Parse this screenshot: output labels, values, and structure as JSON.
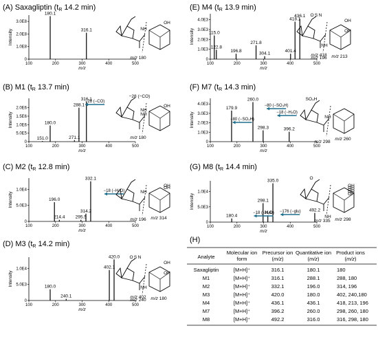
{
  "chart_data": [
    {
      "type": "bar",
      "panel": "A",
      "title": "(A) Saxagliptin (t_R 14.2 min)",
      "xlabel": "m/z",
      "ylabel": "Intensity",
      "xlim": [
        100,
        500
      ],
      "ylim": [
        0,
        3.5
      ],
      "x_ticks": [
        "100",
        "200",
        "300",
        "400",
        "500"
      ],
      "y_ticks": [
        "0",
        "1.0E8",
        "2.0E8",
        "3.0E8"
      ],
      "peaks": [
        {
          "mz": 180.1,
          "intensity": 3.42,
          "label": "180.1"
        },
        {
          "mz": 316.1,
          "intensity": 2.1,
          "label": "316.1"
        }
      ],
      "structure_annotations": [
        "NH",
        "OH",
        "m/z 180"
      ]
    },
    {
      "type": "bar",
      "panel": "B",
      "title": "(B) M1 (t_R 13.7 min)",
      "xlabel": "m/z",
      "ylabel": "Intensity",
      "xlim": [
        100,
        500
      ],
      "ylim": [
        0,
        2.55
      ],
      "x_ticks": [
        "100",
        "200",
        "300",
        "400",
        "500"
      ],
      "y_ticks": [
        "0",
        "5.0E5",
        "1.0E6",
        "1.5E6",
        "2.0E6"
      ],
      "peaks": [
        {
          "mz": 151.0,
          "intensity": 0.04,
          "label": "151.0"
        },
        {
          "mz": 180.0,
          "intensity": 0.95,
          "label": "180.0"
        },
        {
          "mz": 271.1,
          "intensity": 0.09,
          "label": "271.1"
        },
        {
          "mz": 288.1,
          "intensity": 2.0,
          "label": "288.1"
        },
        {
          "mz": 316.1,
          "intensity": 2.35,
          "label": "316.1"
        }
      ],
      "annotations": [
        "−28 (−CO)"
      ],
      "structure_annotations": [
        "NH",
        "NH",
        "OH",
        "−28 (−CO)",
        "m/z 180"
      ]
    },
    {
      "type": "bar",
      "panel": "C",
      "title": "(C) M2 (t_R 12.8 min)",
      "xlabel": "m/z",
      "ylabel": "Intensity",
      "xlim": [
        100,
        500
      ],
      "ylim": [
        0,
        1.35
      ],
      "x_ticks": [
        "100",
        "200",
        "300",
        "400",
        "500"
      ],
      "y_ticks": [
        "0",
        "5.0E3",
        "1.0E4"
      ],
      "peaks": [
        {
          "mz": 196.0,
          "intensity": 0.6,
          "label": "196.0"
        },
        {
          "mz": 214.4,
          "intensity": 0.05,
          "label": "214.4"
        },
        {
          "mz": 295.5,
          "intensity": 0.05,
          "label": "295.5"
        },
        {
          "mz": 314.2,
          "intensity": 0.24,
          "label": "314.2"
        },
        {
          "mz": 332.1,
          "intensity": 1.25,
          "label": "332.1"
        }
      ],
      "annotations": [
        "−18 (−H₂O)"
      ],
      "structure_annotations": [
        "NH",
        "OH",
        "OH",
        "m/z 314",
        "m/z 196"
      ]
    },
    {
      "type": "bar",
      "panel": "D",
      "title": "(D) M3 (t_R 14.2 min)",
      "xlabel": "m/z",
      "ylabel": "Intensity",
      "xlim": [
        100,
        500
      ],
      "ylim": [
        0,
        1.35
      ],
      "x_ticks": [
        "100",
        "200",
        "300",
        "400",
        "500"
      ],
      "y_ticks": [
        "0",
        "5.0E3",
        "1.0E4"
      ],
      "peaks": [
        {
          "mz": 180.0,
          "intensity": 0.35,
          "label": "180.0"
        },
        {
          "mz": 240.1,
          "intensity": 0.05,
          "label": "240.1"
        },
        {
          "mz": 402.1,
          "intensity": 0.95,
          "label": "402.1"
        },
        {
          "mz": 420.0,
          "intensity": 1.28,
          "label": "420.0"
        }
      ],
      "structure_annotations": [
        "OH",
        "O",
        "S",
        "N",
        "NH",
        "OH",
        "m/z 402",
        "m/z 180",
        "m/z 240"
      ]
    },
    {
      "type": "bar",
      "panel": "E",
      "title": "(E) M4 (t_R 13.9 min)",
      "xlabel": "m/z",
      "ylabel": "Intensity",
      "xlim": [
        100,
        500
      ],
      "ylim": [
        0,
        4.6
      ],
      "x_ticks": [
        "100",
        "200",
        "300",
        "400",
        "500"
      ],
      "y_ticks": [
        "0",
        "1.0E3",
        "2.0E3",
        "3.0E3",
        "4.0E3"
      ],
      "peaks": [
        {
          "mz": 115.0,
          "intensity": 2.4,
          "label": "115.0"
        },
        {
          "mz": 122.8,
          "intensity": 0.95,
          "label": "122.8"
        },
        {
          "mz": 196.8,
          "intensity": 0.55,
          "label": "196.8"
        },
        {
          "mz": 271.8,
          "intensity": 1.4,
          "label": "271.8"
        },
        {
          "mz": 304.1,
          "intensity": 0.3,
          "label": "304.1"
        },
        {
          "mz": 401.4,
          "intensity": 0.55,
          "label": "401.4"
        },
        {
          "mz": 418.1,
          "intensity": 3.8,
          "label": "418.1"
        },
        {
          "mz": 436.1,
          "intensity": 4.1,
          "label": "436.1"
        }
      ],
      "structure_annotations": [
        "OH",
        "O",
        "S",
        "N",
        "NH",
        "OH",
        "m/z 418",
        "m/z 213",
        "m/z 196"
      ]
    },
    {
      "type": "bar",
      "panel": "F",
      "title": "(F) M7 (t_R 14.3 min)",
      "xlabel": "m/z",
      "ylabel": "Intensity",
      "xlim": [
        100,
        500
      ],
      "ylim": [
        0,
        4.6
      ],
      "x_ticks": [
        "100",
        "200",
        "300",
        "400",
        "500"
      ],
      "y_ticks": [
        "0",
        "1.0E3",
        "2.0E3",
        "3.0E3",
        "4.0E3"
      ],
      "peaks": [
        {
          "mz": 179.9,
          "intensity": 3.3,
          "label": "179.9"
        },
        {
          "mz": 260.0,
          "intensity": 4.2,
          "label": "260.0"
        },
        {
          "mz": 298.3,
          "intensity": 1.2,
          "label": "298.3"
        },
        {
          "mz": 396.2,
          "intensity": 1.05,
          "label": "396.2"
        }
      ],
      "annotations": [
        "−80 (−SO₃H)",
        "−18 (−H₂O)",
        "−80 (−SO₃H)"
      ],
      "structure_annotations": [
        "SO₃H",
        "NH",
        "m/z 298",
        "m/z 260"
      ]
    },
    {
      "type": "bar",
      "panel": "G",
      "title": "(G) M8 (t_R 14.4 min)",
      "xlabel": "m/z",
      "ylabel": "Intensity",
      "xlim": [
        100,
        500
      ],
      "ylim": [
        0,
        1.35
      ],
      "x_ticks": [
        "100",
        "200",
        "300",
        "400",
        "500"
      ],
      "y_ticks": [
        "0",
        "5.0E3",
        "1.0E4"
      ],
      "peaks": [
        {
          "mz": 180.4,
          "intensity": 0.12,
          "label": "180.4"
        },
        {
          "mz": 298.1,
          "intensity": 0.62,
          "label": "298.1"
        },
        {
          "mz": 316.0,
          "intensity": 0.22,
          "label": "316"
        },
        {
          "mz": 335.0,
          "intensity": 1.27,
          "label": "335.0"
        },
        {
          "mz": 492.2,
          "intensity": 0.3,
          "label": "492.2"
        }
      ],
      "annotations": [
        "−18 (−H₂O)",
        "−176 (−glu)"
      ],
      "structure_annotations": [
        "O",
        "OH",
        "OH",
        "OH",
        "OH",
        "OH",
        "NH",
        "m/z 298",
        "m/z 335"
      ]
    },
    {
      "type": "table",
      "panel": "H",
      "title": "(H)",
      "columns": [
        "Analyte",
        "Molecular ion form",
        "Precursor ion (m/z)",
        "Quantitative ion (m/z)",
        "Product ions (m/z)"
      ],
      "rows": [
        [
          "Saxagliptin",
          "[M+H]⁺",
          "316.1",
          "180.1",
          "180"
        ],
        [
          "M1",
          "[M+H]⁺",
          "316.1",
          "288.1",
          "288, 180"
        ],
        [
          "M2",
          "[M+H]⁺",
          "332.1",
          "196.0",
          "314, 196"
        ],
        [
          "M3",
          "[M+H]⁺",
          "420.0",
          "180.0",
          "402, 240,180"
        ],
        [
          "M4",
          "[M+H]⁺",
          "436.1",
          "436.1",
          "418, 213, 196"
        ],
        [
          "M7",
          "[M+H]⁺",
          "396.2",
          "260.0",
          "298, 260, 180"
        ],
        [
          "M8",
          "[M+H]⁺",
          "492.2",
          "316.0",
          "316, 298, 180"
        ]
      ]
    }
  ],
  "colors": {
    "peak": "#000000",
    "arrow": "#1f6f8b",
    "label_leader": "#3aa79b",
    "fragment_dash": "#000000"
  }
}
